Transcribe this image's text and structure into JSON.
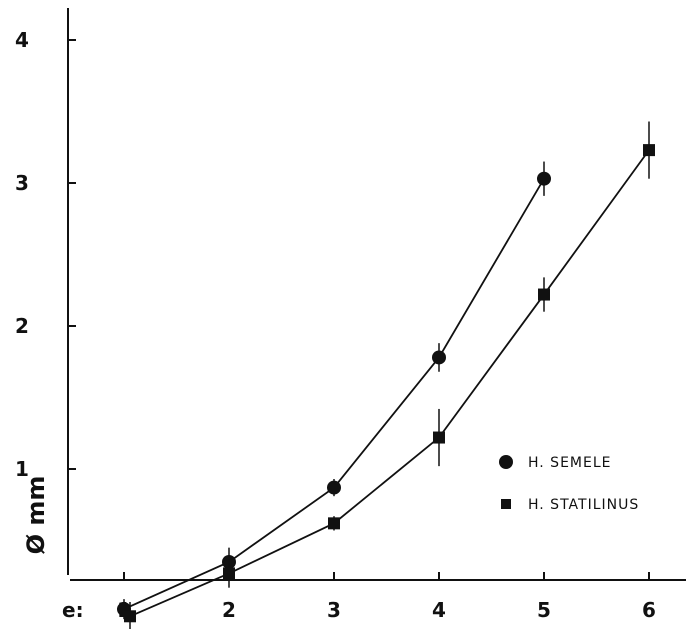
{
  "chart_data": {
    "type": "line",
    "title": "",
    "xlabel": "e:",
    "ylabel": "Ø mm",
    "x": [
      1,
      2,
      3,
      4,
      5,
      6
    ],
    "xlim": [
      0.5,
      6.4
    ],
    "ylim": [
      -0.3,
      4.2
    ],
    "xticks": [
      "1",
      "2",
      "3",
      "4",
      "5",
      "6"
    ],
    "yticks": [
      "1",
      "2",
      "3",
      "4"
    ],
    "grid": false,
    "legend_position": "right",
    "series": [
      {
        "name": "H. SEMELE",
        "marker": "circle",
        "x": [
          1,
          2,
          3,
          4,
          5
        ],
        "values": [
          0.02,
          0.35,
          0.87,
          1.78,
          3.03
        ],
        "error": [
          0.07,
          0.1,
          0.06,
          0.1,
          0.12
        ]
      },
      {
        "name": "H. STATILINUS",
        "marker": "square",
        "x": [
          1,
          2,
          3,
          4,
          5,
          6
        ],
        "values": [
          -0.03,
          0.27,
          0.62,
          1.22,
          2.22,
          3.23
        ],
        "error": [
          0.1,
          0.1,
          0.05,
          0.2,
          0.12,
          0.2
        ]
      }
    ]
  }
}
